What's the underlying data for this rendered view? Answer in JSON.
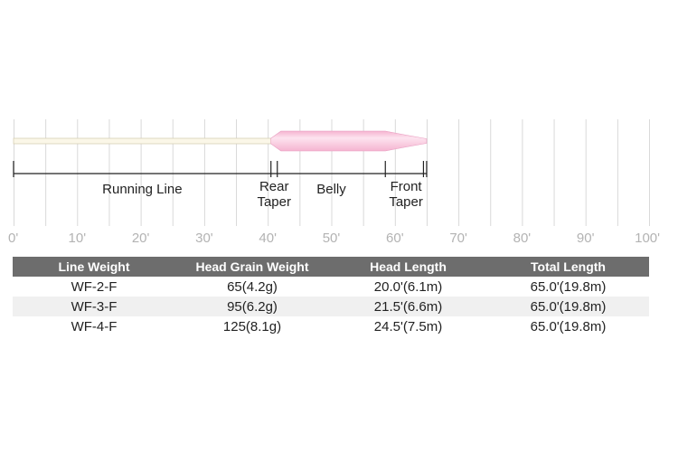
{
  "colors": {
    "grid": "#d9d9d9",
    "running_line_fill": "#fbf7e8",
    "running_line_stroke": "#d8cfb4",
    "head_fill": "#f5b4d0",
    "head_highlight": "#fde3ef",
    "dimension_line": "#222222",
    "tick_label": "#b3b3b3",
    "table_header_bg": "#6d6d6d"
  },
  "axis": {
    "unit": "feet",
    "min": 0,
    "max": 100,
    "step": 10,
    "tick_labels": [
      "0'",
      "10'",
      "20'",
      "30'",
      "40'",
      "50'",
      "60'",
      "70'",
      "80'",
      "90'",
      "100'"
    ]
  },
  "line_profile": {
    "total_length_ft": 65,
    "running_line": {
      "start_ft": 0,
      "end_ft": 40.5
    },
    "head": {
      "rear_taper_start_ft": 40.5,
      "rear_taper_end_ft": 41.5,
      "belly_end_ft": 58.5,
      "front_taper_end_ft": 65
    }
  },
  "segments": [
    {
      "name": "running-line",
      "lines": [
        "Running Line"
      ],
      "from_ft": 0,
      "to_ft": 40.5
    },
    {
      "name": "rear-taper",
      "lines": [
        "Rear",
        "Taper"
      ],
      "from_ft": 40.5,
      "to_ft": 41.5
    },
    {
      "name": "belly",
      "lines": [
        "Belly"
      ],
      "from_ft": 41.5,
      "to_ft": 58.5
    },
    {
      "name": "front-taper",
      "lines": [
        "Front",
        "Taper"
      ],
      "from_ft": 58.5,
      "to_ft": 65
    }
  ],
  "dimension_marks_ft": [
    0,
    40.5,
    41.5,
    58.5,
    64.5,
    65
  ],
  "table": {
    "headers": [
      "Line Weight",
      "Head Grain Weight",
      "Head Length",
      "Total Length"
    ],
    "rows": [
      [
        "WF-2-F",
        "65(4.2g)",
        "20.0'(6.1m)",
        "65.0'(19.8m)"
      ],
      [
        "WF-3-F",
        "95(6.2g)",
        "21.5'(6.6m)",
        "65.0'(19.8m)"
      ],
      [
        "WF-4-F",
        "125(8.1g)",
        "24.5'(7.5m)",
        "65.0'(19.8m)"
      ]
    ]
  }
}
